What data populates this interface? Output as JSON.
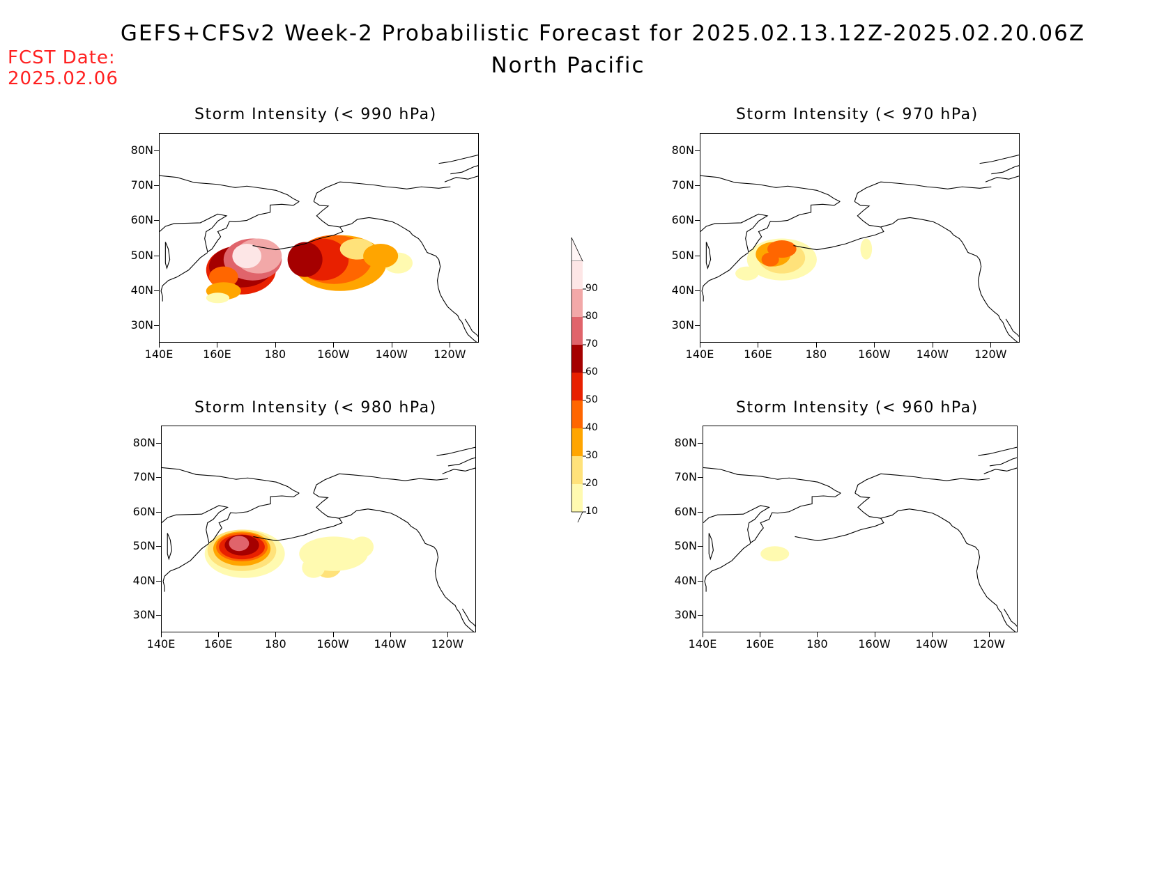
{
  "header": {
    "title": "GEFS+CFSv2 Week-2 Probabilistic Forecast for 2025.02.13.12Z-2025.02.20.06Z",
    "subtitle": "North Pacific",
    "fcst_date_label": "FCST Date:",
    "fcst_date_value": "2025.02.06"
  },
  "axes": {
    "lat_ticks": [
      "80N",
      "70N",
      "60N",
      "50N",
      "40N",
      "30N"
    ],
    "lon_ticks": [
      "140E",
      "160E",
      "180",
      "160W",
      "140W",
      "120W"
    ]
  },
  "panels": [
    {
      "title": "Storm Intensity (< 990 hPa)",
      "id": "p990"
    },
    {
      "title": "Storm Intensity (< 970 hPa)",
      "id": "p970"
    },
    {
      "title": "Storm Intensity (< 980 hPa)",
      "id": "p980"
    },
    {
      "title": "Storm Intensity (< 960 hPa)",
      "id": "p960"
    }
  ],
  "colorbar": {
    "levels": [
      "10",
      "20",
      "30",
      "40",
      "50",
      "60",
      "70",
      "80",
      "90"
    ],
    "colors": [
      "#fffab0",
      "#ffe27a",
      "#ffa500",
      "#ff6600",
      "#e82000",
      "#a50000",
      "#e0646b",
      "#f2a8a8",
      "#fde6e6"
    ]
  },
  "colors": {
    "fcst_date": "#ff2020"
  }
}
